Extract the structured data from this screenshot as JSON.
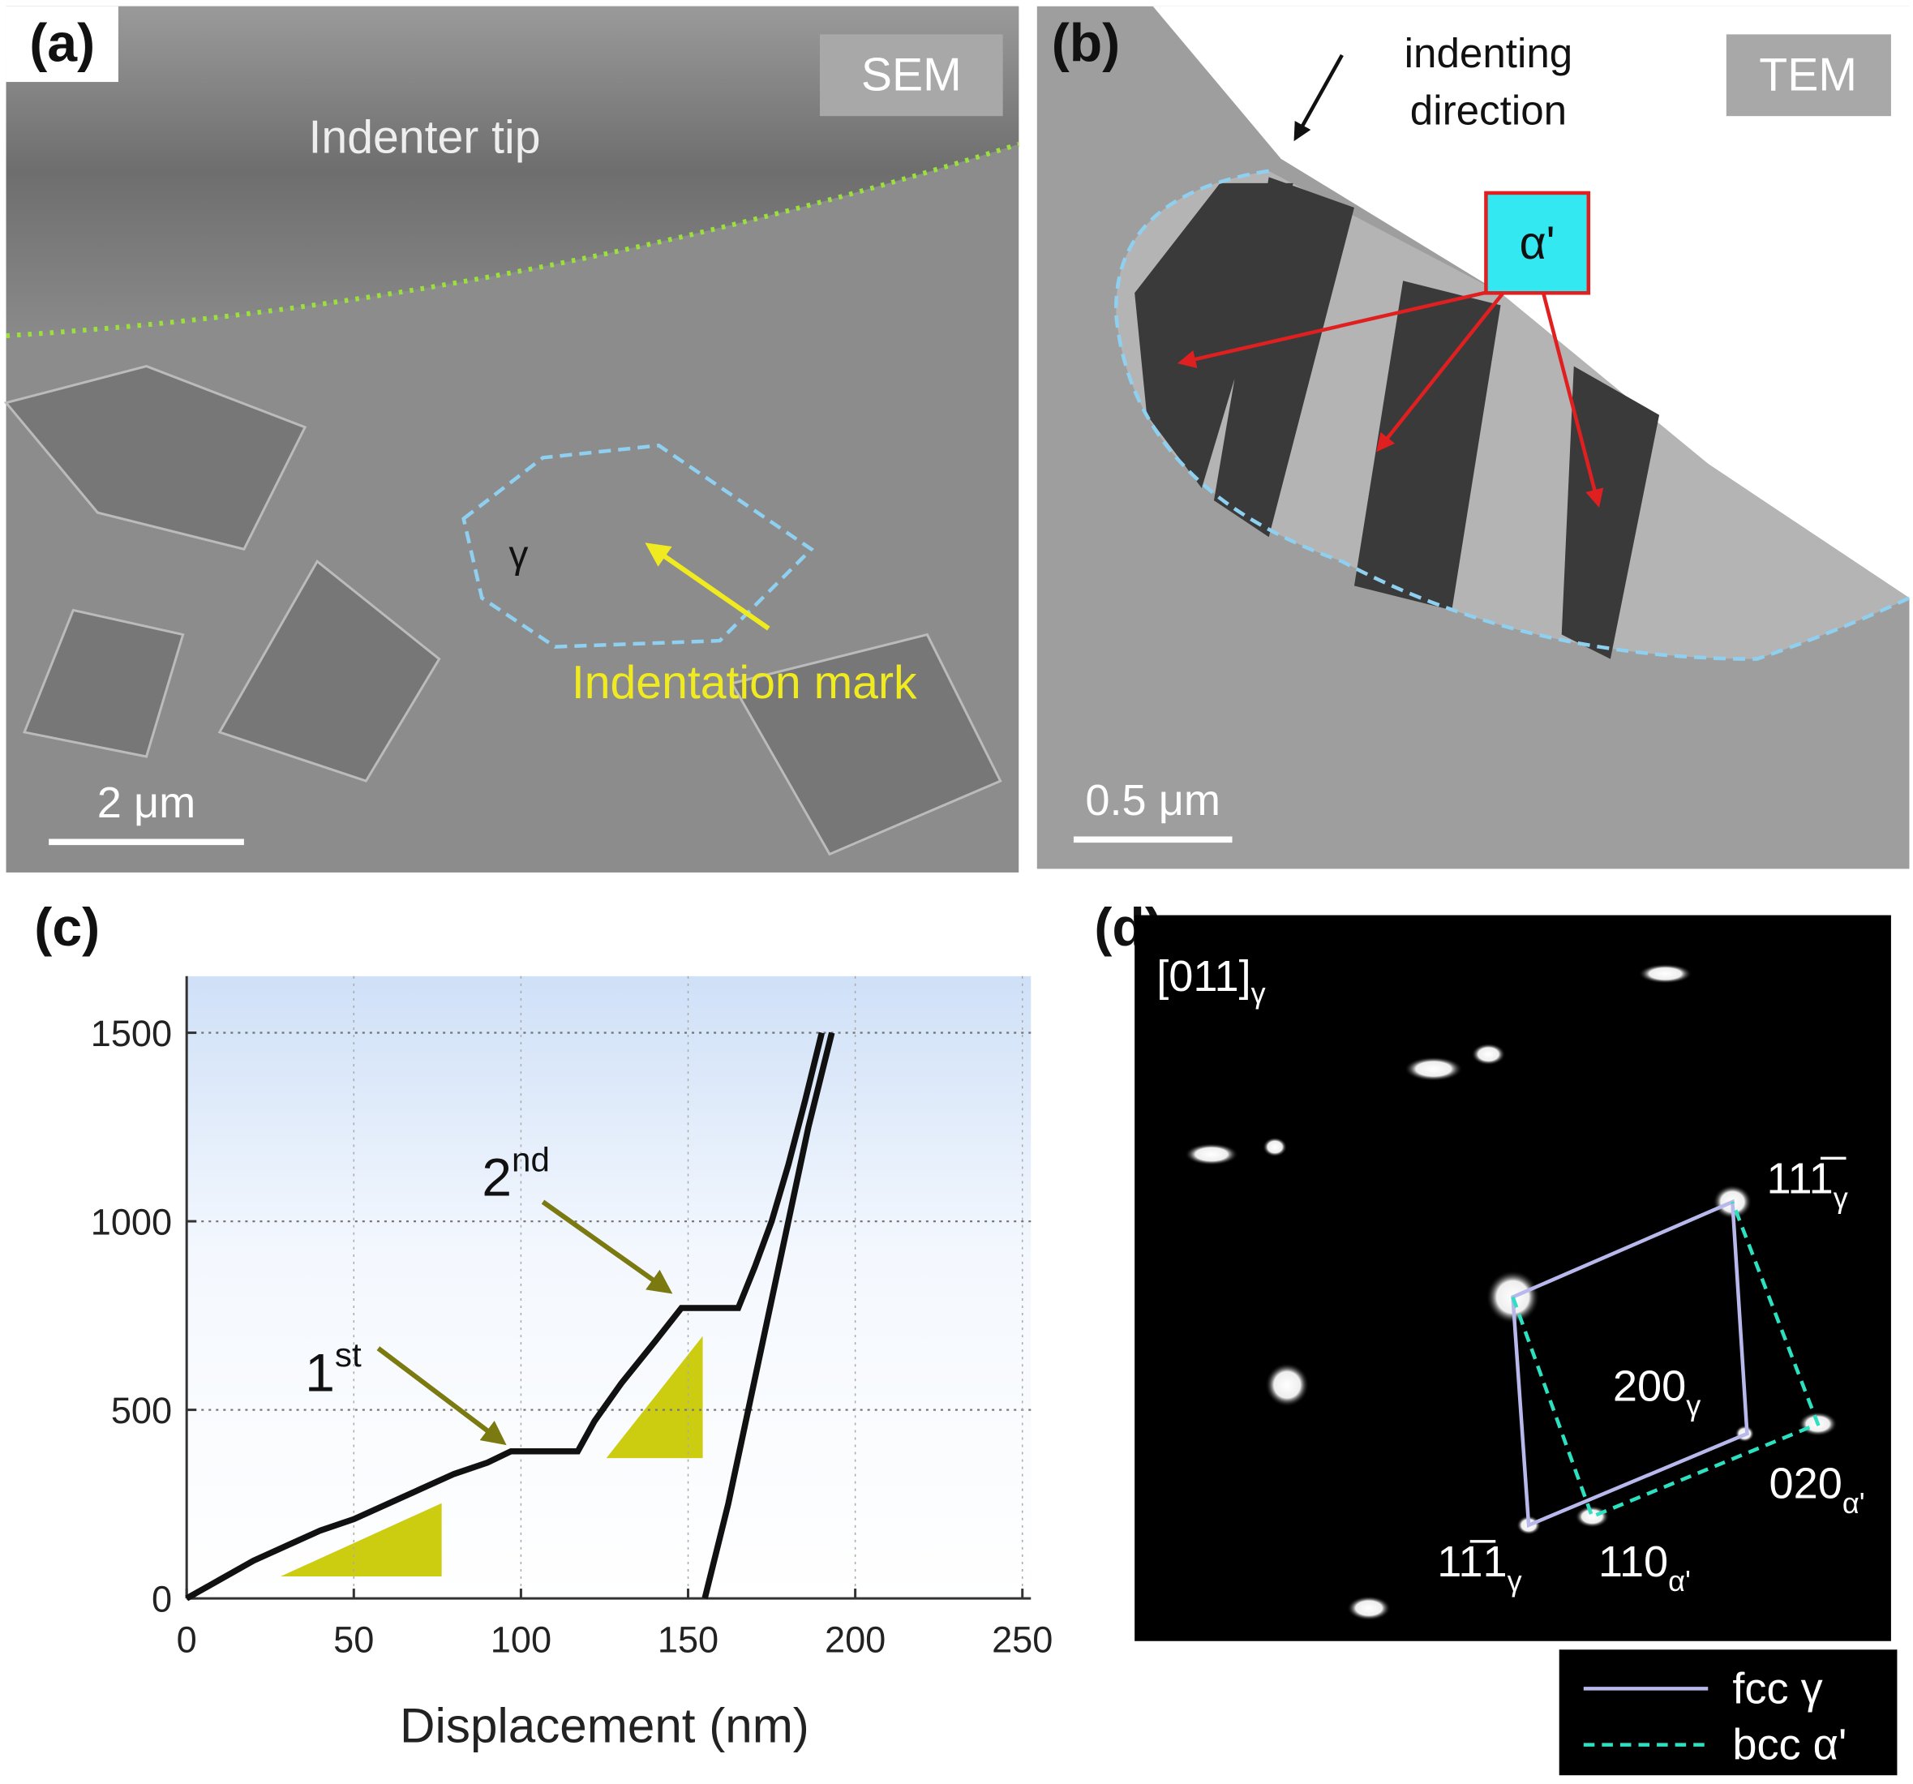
{
  "panel_a": {
    "label": "(a)",
    "badge": "SEM",
    "tip": "Indenter tip",
    "grain": "γ",
    "mark": "Indentation mark",
    "scale_bar": "2 μm"
  },
  "panel_b": {
    "label": "(b)",
    "badge": "TEM",
    "direction": [
      "indenting",
      "direction"
    ],
    "phase": "α'",
    "scale_bar": "0.5 μm"
  },
  "panel_c": {
    "label": "(c)"
  },
  "chart_data": {
    "type": "line",
    "x_label": "Displacement (nm)",
    "xlim": [
      0,
      250
    ],
    "xticks": [
      0,
      50,
      100,
      150,
      200,
      250
    ],
    "ylim": [
      0,
      1650
    ],
    "yticks": [
      0,
      500,
      1000,
      1500
    ],
    "grid": true,
    "annotations": [
      {
        "text": "1",
        "sup": "st"
      },
      {
        "text": "2",
        "sup": "nd"
      }
    ],
    "series": [
      {
        "color": "#111111",
        "x": [
          0,
          10,
          20,
          30,
          40,
          50,
          60,
          70,
          80,
          90,
          97,
          117,
          122,
          130,
          140,
          148,
          165,
          170,
          175,
          180,
          185,
          190
        ],
        "values": [
          0,
          50,
          100,
          140,
          180,
          210,
          250,
          290,
          330,
          360,
          390,
          390,
          470,
          570,
          680,
          770,
          770,
          880,
          1000,
          1150,
          1320,
          1500
        ]
      },
      {
        "color": "#111111",
        "x": [
          193,
          186,
          180,
          174,
          168,
          162,
          155
        ],
        "values": [
          1500,
          1250,
          1000,
          750,
          500,
          250,
          0
        ]
      }
    ]
  },
  "panel_d": {
    "label": "(d)",
    "zone": {
      "main": "[011]",
      "sub": "γ"
    },
    "spots": [
      {
        "main": "111̅",
        "sub": "γ"
      },
      {
        "main": "200",
        "sub": "γ"
      },
      {
        "main": "020",
        "sub": "α'"
      },
      {
        "main": "11̅1",
        "sub": "γ"
      },
      {
        "main": "110",
        "sub": "α'"
      }
    ],
    "legend": [
      "fcc γ",
      "bcc α'"
    ]
  }
}
